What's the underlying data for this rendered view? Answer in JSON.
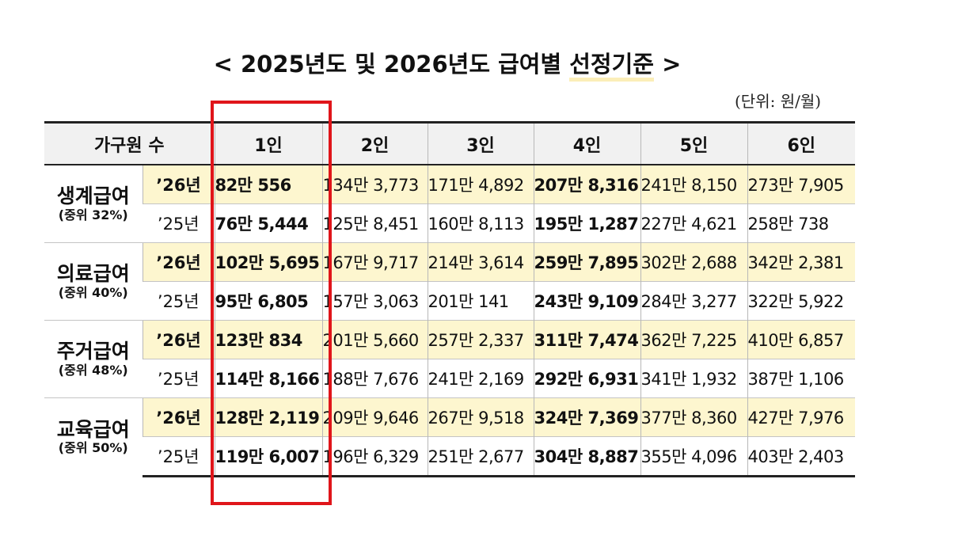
{
  "title": {
    "prefix": "< 2025년도 및 2026년도 급여별 ",
    "highlight": "선정기준",
    "suffix": " >"
  },
  "unit_label": "(단위: 원/월)",
  "table": {
    "header": {
      "household_label": "가구원 수",
      "columns": [
        "1인",
        "2인",
        "3인",
        "4인",
        "5인",
        "6인"
      ]
    },
    "groups": [
      {
        "name": "생계급여",
        "sub": "(중위 32%)",
        "rows": [
          {
            "year": "’26년",
            "values": [
              "82만 556",
              "134만 3,773",
              "171만 4,892",
              "207만 8,316",
              "241만 8,150",
              "273만 7,905"
            ]
          },
          {
            "year": "’25년",
            "values": [
              "76만 5,444",
              "125만 8,451",
              "160만 8,113",
              "195만 1,287",
              "227만 4,621",
              "258만 738"
            ]
          }
        ]
      },
      {
        "name": "의료급여",
        "sub": "(중위 40%)",
        "rows": [
          {
            "year": "’26년",
            "values": [
              "102만 5,695",
              "167만 9,717",
              "214만 3,614",
              "259만 7,895",
              "302만 2,688",
              "342만 2,381"
            ]
          },
          {
            "year": "’25년",
            "values": [
              "95만 6,805",
              "157만 3,063",
              "201만 141",
              "243만 9,109",
              "284만 3,277",
              "322만 5,922"
            ]
          }
        ]
      },
      {
        "name": "주거급여",
        "sub": "(중위 48%)",
        "rows": [
          {
            "year": "’26년",
            "values": [
              "123만 834",
              "201만 5,660",
              "257만 2,337",
              "311만 7,474",
              "362만 7,225",
              "410만 6,857"
            ]
          },
          {
            "year": "’25년",
            "values": [
              "114만 8,166",
              "188만 7,676",
              "241만 2,169",
              "292만 6,931",
              "341만 1,932",
              "387만 1,106"
            ]
          }
        ]
      },
      {
        "name": "교육급여",
        "sub": "(중위 50%)",
        "rows": [
          {
            "year": "’26년",
            "values": [
              "128만 2,119",
              "209만 9,646",
              "267만 9,518",
              "324만 7,369",
              "377만 8,360",
              "427만 7,976"
            ]
          },
          {
            "year": "’25년",
            "values": [
              "119만 6,007",
              "196만 6,329",
              "251만 2,677",
              "304만 8,887",
              "355만 4,096",
              "403만 2,403"
            ]
          }
        ]
      }
    ]
  },
  "colors": {
    "highlight_row": "#fdf6cf",
    "header_bg": "#f1f1f1",
    "emphasis_box": "#e0151a"
  }
}
